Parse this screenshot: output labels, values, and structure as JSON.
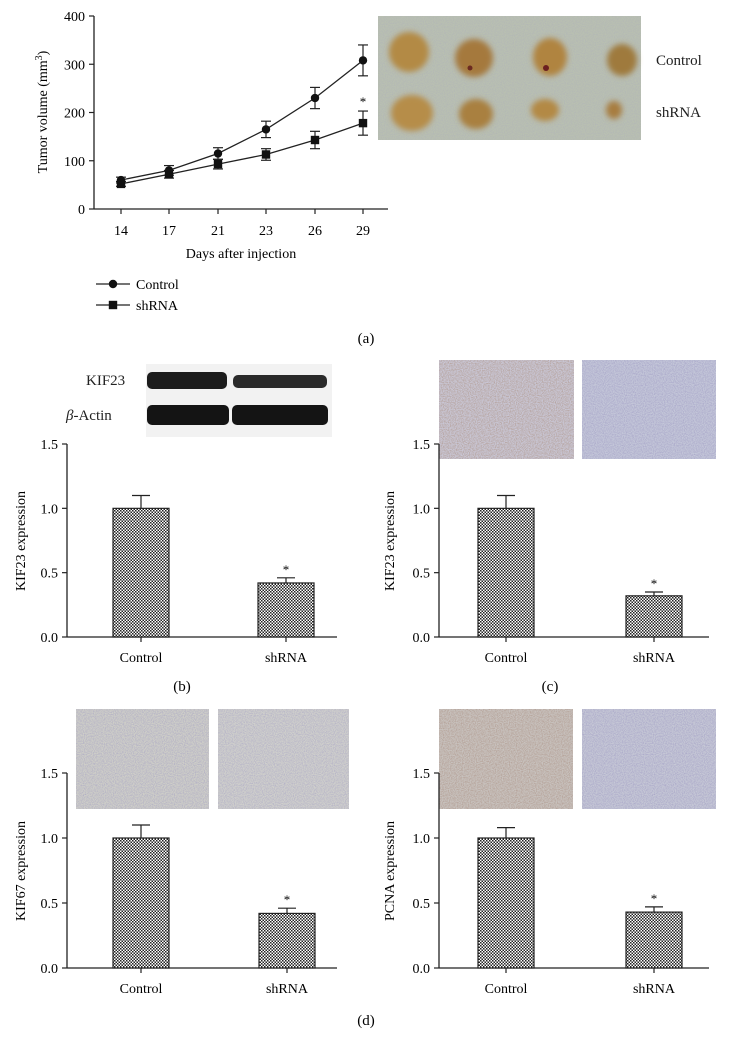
{
  "panel_labels": {
    "a": "(a)",
    "b": "(b)",
    "c": "(c)",
    "d": "(d)"
  },
  "chart_data": [
    {
      "id": "a",
      "type": "line",
      "xlabel": "Days after injection",
      "ylabel": "Tumor volume (mm³)",
      "ylabel_main": "Tumor volume (mm",
      "ylabel_sup": "3",
      "ylabel_end": ")",
      "x": [
        14,
        17,
        21,
        23,
        26,
        29
      ],
      "xticks": [
        "14",
        "17",
        "21",
        "23",
        "26",
        "29"
      ],
      "ylim": [
        0,
        400
      ],
      "yticks": [
        0,
        100,
        200,
        300,
        400
      ],
      "series": [
        {
          "name": "Control",
          "marker": "circle",
          "values": [
            60,
            80,
            115,
            165,
            230,
            308
          ],
          "errors": [
            6,
            10,
            12,
            17,
            22,
            32
          ]
        },
        {
          "name": "shRNA",
          "marker": "square",
          "values": [
            52,
            72,
            93,
            113,
            143,
            178
          ],
          "errors": [
            5,
            8,
            10,
            12,
            18,
            25
          ]
        }
      ],
      "annotations": [
        {
          "x": 29,
          "text": "*"
        }
      ],
      "photo_labels": [
        "Control",
        "shRNA"
      ]
    },
    {
      "id": "b",
      "type": "bar",
      "categories": [
        "Control",
        "shRNA"
      ],
      "values": [
        1.0,
        0.42
      ],
      "errors": [
        0.1,
        0.04
      ],
      "ylabel": "KIF23 expression",
      "ylim": [
        0,
        1.5
      ],
      "yticks": [
        "0.0",
        "0.5",
        "1.0",
        "1.5"
      ],
      "annotations": [
        {
          "category": "shRNA",
          "text": "*"
        }
      ],
      "blot_labels": [
        "KIF23",
        "β-Actin"
      ],
      "blot_label_greek": "β",
      "blot_label_rest": "-Actin"
    },
    {
      "id": "c",
      "type": "bar",
      "categories": [
        "Control",
        "shRNA"
      ],
      "values": [
        1.0,
        0.32
      ],
      "errors": [
        0.1,
        0.03
      ],
      "ylabel": "KIF23 expression",
      "ylim": [
        0,
        1.5
      ],
      "yticks": [
        "0.0",
        "0.5",
        "1.0",
        "1.5"
      ],
      "annotations": [
        {
          "category": "shRNA",
          "text": "*"
        }
      ]
    },
    {
      "id": "d1",
      "type": "bar",
      "categories": [
        "Control",
        "shRNA"
      ],
      "values": [
        1.0,
        0.42
      ],
      "errors": [
        0.1,
        0.04
      ],
      "ylabel": "KIF67 expression",
      "ylim": [
        0,
        1.5
      ],
      "yticks": [
        "0.0",
        "0.5",
        "1.0",
        "1.5"
      ],
      "annotations": [
        {
          "category": "shRNA",
          "text": "*"
        }
      ]
    },
    {
      "id": "d2",
      "type": "bar",
      "categories": [
        "Control",
        "shRNA"
      ],
      "values": [
        1.0,
        0.43
      ],
      "errors": [
        0.08,
        0.04
      ],
      "ylabel": "PCNA expression",
      "ylim": [
        0,
        1.5
      ],
      "yticks": [
        "0.0",
        "0.5",
        "1.0",
        "1.5"
      ],
      "annotations": [
        {
          "category": "shRNA",
          "text": "*"
        }
      ]
    }
  ]
}
